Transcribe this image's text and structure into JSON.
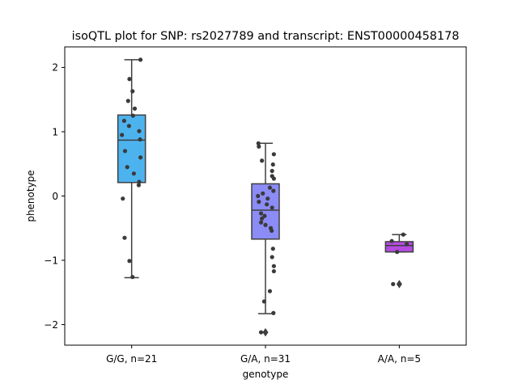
{
  "chart_data": {
    "type": "box",
    "title": "isoQTL plot for SNP: rs2027789 and transcript: ENST00000458178",
    "xlabel": "genotype",
    "ylabel": "phenotype",
    "ylim": [
      -2.32,
      2.32
    ],
    "yticks": [
      2,
      1,
      0,
      -1,
      -2
    ],
    "ytick_labels": [
      "2",
      "1",
      "0",
      "−1",
      "−2"
    ],
    "grid": false,
    "categories": [
      "G/G, n=21",
      "G/A, n=31",
      "A/A, n=5"
    ],
    "groups": [
      {
        "label": "G/G, n=21",
        "color": "#4db3ef",
        "q1": 0.21,
        "median": 0.87,
        "q3": 1.26,
        "whisker_low": -1.27,
        "whisker_high": 2.12,
        "outliers": [],
        "points": [
          {
            "y": 2.12,
            "j": 0.2
          },
          {
            "y": 1.82,
            "j": -0.05
          },
          {
            "y": 1.63,
            "j": 0.02
          },
          {
            "y": 1.48,
            "j": -0.08
          },
          {
            "y": 1.36,
            "j": 0.07
          },
          {
            "y": 1.25,
            "j": 0.03
          },
          {
            "y": 1.17,
            "j": -0.17
          },
          {
            "y": 1.09,
            "j": -0.06
          },
          {
            "y": 1.01,
            "j": 0.17
          },
          {
            "y": 0.95,
            "j": -0.22
          },
          {
            "y": 0.88,
            "j": 0.19
          },
          {
            "y": 0.7,
            "j": -0.15
          },
          {
            "y": 0.6,
            "j": 0.2
          },
          {
            "y": 0.45,
            "j": -0.1
          },
          {
            "y": 0.35,
            "j": 0.05
          },
          {
            "y": 0.22,
            "j": 0.17
          },
          {
            "y": 0.17,
            "j": 0.16
          },
          {
            "y": -0.04,
            "j": -0.2
          },
          {
            "y": -0.65,
            "j": -0.16
          },
          {
            "y": -1.01,
            "j": -0.05
          },
          {
            "y": -1.26,
            "j": 0.02
          }
        ]
      },
      {
        "label": "G/A, n=31",
        "color": "#8b8cf6",
        "q1": -0.67,
        "median": -0.22,
        "q3": 0.19,
        "whisker_low": -1.83,
        "whisker_high": 0.82,
        "outliers": [
          -2.12
        ],
        "points": [
          {
            "y": 0.82,
            "j": -0.16
          },
          {
            "y": 0.77,
            "j": -0.15
          },
          {
            "y": 0.65,
            "j": 0.19
          },
          {
            "y": 0.55,
            "j": -0.08
          },
          {
            "y": 0.49,
            "j": 0.17
          },
          {
            "y": 0.39,
            "j": 0.15
          },
          {
            "y": 0.31,
            "j": 0.15
          },
          {
            "y": 0.27,
            "j": 0.19
          },
          {
            "y": 0.13,
            "j": 0.1
          },
          {
            "y": 0.08,
            "j": 0.18
          },
          {
            "y": 0.04,
            "j": -0.06
          },
          {
            "y": 0.0,
            "j": -0.17
          },
          {
            "y": -0.04,
            "j": 0.05
          },
          {
            "y": -0.09,
            "j": -0.15
          },
          {
            "y": -0.13,
            "j": 0.03
          },
          {
            "y": -0.18,
            "j": 0.15
          },
          {
            "y": -0.27,
            "j": -0.1
          },
          {
            "y": -0.31,
            "j": -0.02
          },
          {
            "y": -0.35,
            "j": -0.08
          },
          {
            "y": -0.41,
            "j": -0.1
          },
          {
            "y": -0.45,
            "j": 0.0
          },
          {
            "y": -0.5,
            "j": 0.12
          },
          {
            "y": -0.54,
            "j": 0.14
          },
          {
            "y": -0.82,
            "j": 0.17
          },
          {
            "y": -0.95,
            "j": 0.15
          },
          {
            "y": -1.09,
            "j": 0.19
          },
          {
            "y": -1.17,
            "j": 0.19
          },
          {
            "y": -1.48,
            "j": 0.1
          },
          {
            "y": -1.64,
            "j": -0.03
          },
          {
            "y": -1.82,
            "j": 0.18
          },
          {
            "y": -2.12,
            "j": -0.1
          }
        ]
      },
      {
        "label": "A/A, n=5",
        "color": "#b54be0",
        "q1": -0.87,
        "median": -0.77,
        "q3": -0.71,
        "whisker_low": -0.87,
        "whisker_high": -0.6,
        "outliers": [
          -1.37
        ],
        "points": [
          {
            "y": -0.6,
            "j": 0.09
          },
          {
            "y": -0.7,
            "j": -0.17
          },
          {
            "y": -0.75,
            "j": 0.17
          },
          {
            "y": -0.87,
            "j": -0.05
          },
          {
            "y": -1.37,
            "j": -0.14
          }
        ]
      }
    ]
  }
}
